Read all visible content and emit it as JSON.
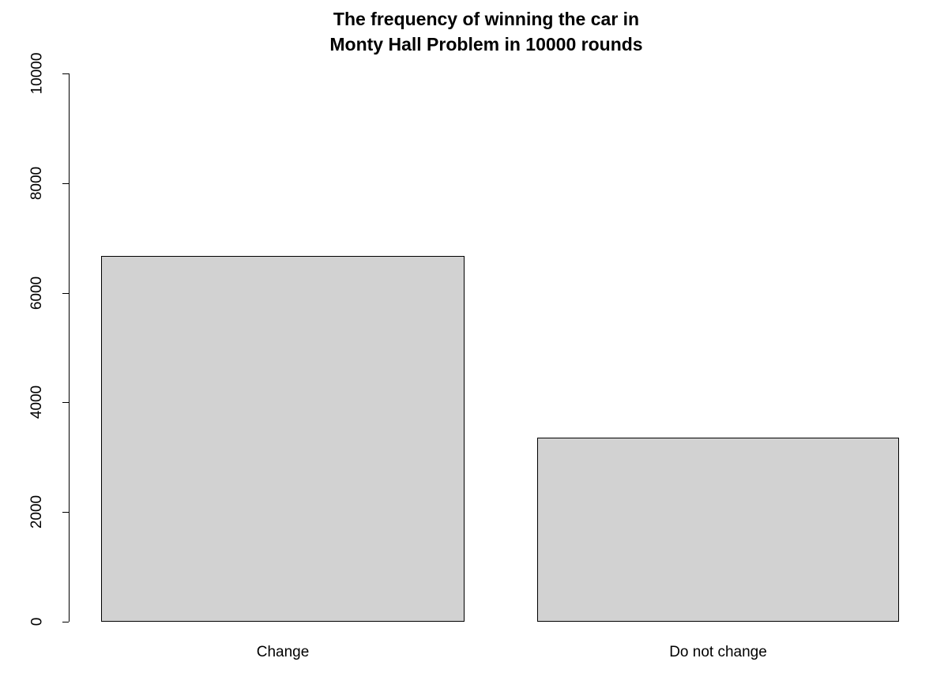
{
  "title": {
    "line1": "The frequency of winning the car in",
    "line2": "Monty Hall Problem in 10000 rounds"
  },
  "chart_data": {
    "type": "bar",
    "categories": [
      "Change",
      "Do not change"
    ],
    "values": [
      6670,
      3360
    ],
    "title": "The frequency of winning the car in\nMonty Hall Problem in 10000 rounds",
    "xlabel": "",
    "ylabel": "",
    "ylim": [
      0,
      10000
    ],
    "yticks": [
      0,
      2000,
      4000,
      6000,
      8000,
      10000
    ],
    "bar_color": "#d2d2d2",
    "bar_border_color": "#000000",
    "axis_color": "#000000",
    "grid": false,
    "legend": null
  }
}
